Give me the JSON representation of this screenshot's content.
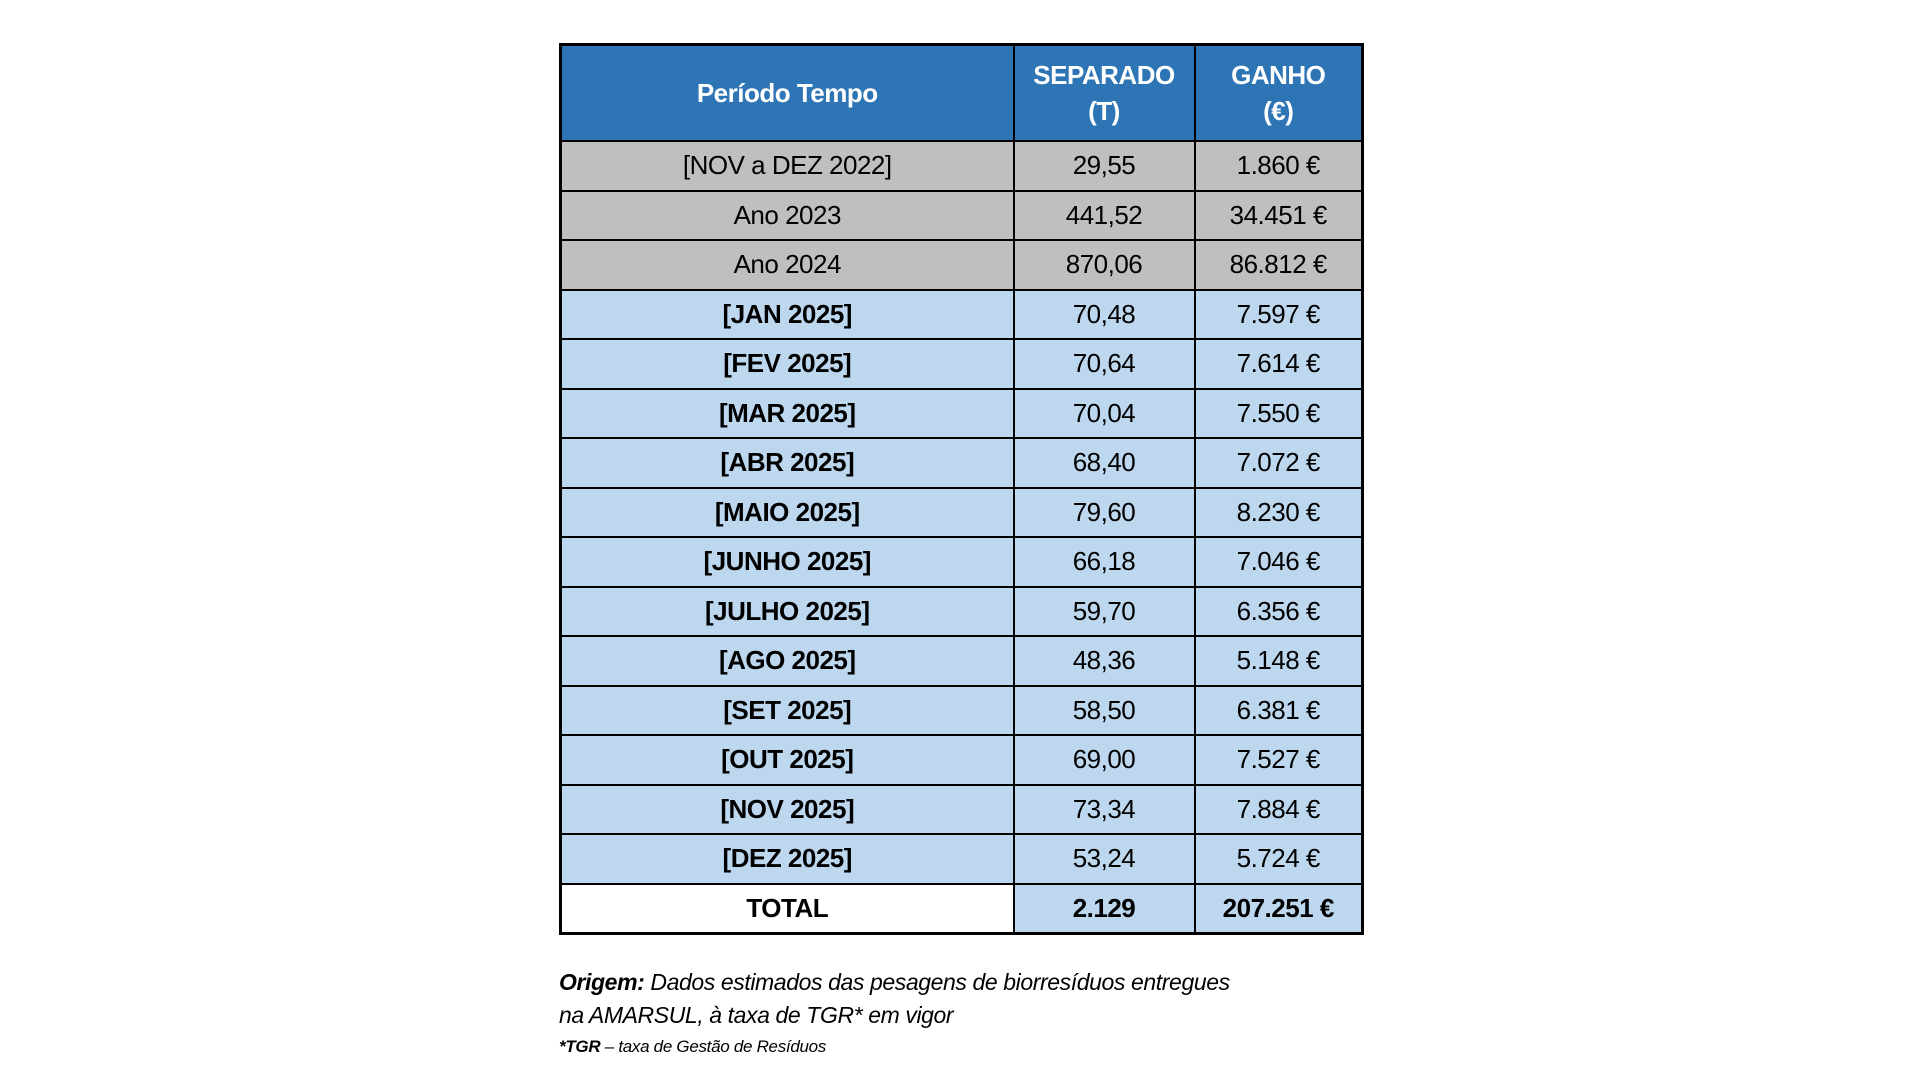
{
  "table": {
    "headers": {
      "period": "Período Tempo",
      "separado_line1": "SEPARADO",
      "separado_line2": "(T)",
      "ganho_line1": "GANHO",
      "ganho_line2": "(€)"
    },
    "rows": [
      {
        "period": "[NOV a DEZ 2022]",
        "separado": "29,55",
        "ganho": "1.860 €",
        "style": "gray"
      },
      {
        "period": "Ano 2023",
        "separado": "441,52",
        "ganho": "34.451 €",
        "style": "gray"
      },
      {
        "period": "Ano 2024",
        "separado": "870,06",
        "ganho": "86.812 €",
        "style": "gray"
      },
      {
        "period": "[JAN 2025]",
        "separado": "70,48",
        "ganho": "7.597 €",
        "style": "blue"
      },
      {
        "period": "[FEV 2025]",
        "separado": "70,64",
        "ganho": "7.614 €",
        "style": "blue"
      },
      {
        "period": "[MAR 2025]",
        "separado": "70,04",
        "ganho": "7.550 €",
        "style": "blue"
      },
      {
        "period": "[ABR 2025]",
        "separado": "68,40",
        "ganho": "7.072 €",
        "style": "blue"
      },
      {
        "period": "[MAIO 2025]",
        "separado": "79,60",
        "ganho": "8.230 €",
        "style": "blue"
      },
      {
        "period": "[JUNHO 2025]",
        "separado": "66,18",
        "ganho": "7.046 €",
        "style": "blue"
      },
      {
        "period": "[JULHO 2025]",
        "separado": "59,70",
        "ganho": "6.356 €",
        "style": "blue"
      },
      {
        "period": "[AGO 2025]",
        "separado": "48,36",
        "ganho": "5.148 €",
        "style": "blue"
      },
      {
        "period": "[SET 2025]",
        "separado": "58,50",
        "ganho": "6.381 €",
        "style": "blue"
      },
      {
        "period": "[OUT 2025]",
        "separado": "69,00",
        "ganho": "7.527 €",
        "style": "blue"
      },
      {
        "period": "[NOV 2025]",
        "separado": "73,34",
        "ganho": "7.884 €",
        "style": "blue"
      },
      {
        "period": "[DEZ 2025]",
        "separado": "53,24",
        "ganho": "5.724 €",
        "style": "blue"
      }
    ],
    "total": {
      "period": "TOTAL",
      "separado": "2.129",
      "ganho": "207.251 €"
    }
  },
  "footnote": {
    "origin_label": "Origem:",
    "origin_text_line1": " Dados estimados das pesagens de biorresíduos entregues",
    "origin_text_line2": "na AMARSUL, à taxa de TGR* em vigor",
    "tgr_label": "*TGR",
    "tgr_text": " – taxa de Gestão de Resíduos"
  },
  "colors": {
    "header_bg": "#2E75B6",
    "gray_row_bg": "#BFBFBF",
    "blue_row_bg": "#BDD7EE",
    "total_label_bg": "#FFFFFF"
  }
}
